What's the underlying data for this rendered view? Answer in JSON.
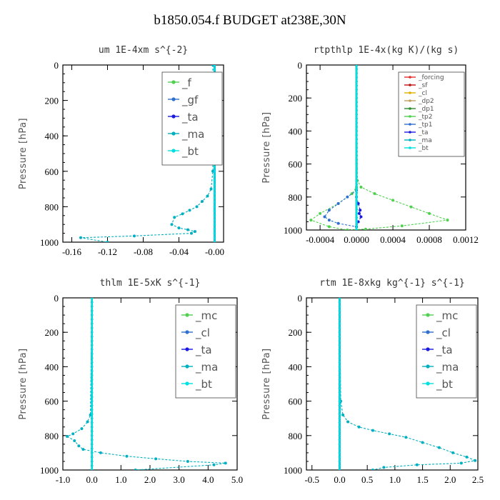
{
  "title": "b1850.054.f  BUDGET at238E,30N",
  "chart_data": [
    {
      "type": "line",
      "title": "um   1E-4xm s^{-2}",
      "ylabel": "Pressure [hPa]",
      "xlim": [
        -0.17,
        0.01
      ],
      "ylim": [
        1000,
        0
      ],
      "xticks": [
        -0.16,
        -0.12,
        -0.08,
        -0.04,
        -0.0
      ],
      "xticklabels": [
        "-0.16",
        "-0.12",
        "-0.08",
        "-0.04",
        "-0.00"
      ],
      "yticks": [
        0,
        200,
        400,
        600,
        800,
        1000
      ],
      "legend": {
        "position": "top-right",
        "size": "large"
      },
      "series": [
        {
          "name": "_f",
          "color": "#4fd14f",
          "x": [
            0,
            0
          ],
          "y": [
            0,
            1000
          ]
        },
        {
          "name": "_gf",
          "color": "#2f6fd0",
          "x": [
            0,
            0
          ],
          "y": [
            0,
            1000
          ]
        },
        {
          "name": "_ta",
          "color": "#1a1ae0",
          "x": [
            0,
            0
          ],
          "y": [
            0,
            1000
          ]
        },
        {
          "name": "_ma",
          "color": "#00b0c0",
          "x": [
            -0.002,
            -0.002,
            -0.004,
            -0.008,
            -0.014,
            -0.02,
            -0.028,
            -0.036,
            -0.045,
            -0.048,
            -0.04,
            -0.03,
            -0.022,
            -0.026,
            -0.09,
            -0.15,
            -0.12
          ],
          "y": [
            0,
            600,
            700,
            740,
            770,
            800,
            820,
            840,
            860,
            900,
            920,
            930,
            940,
            950,
            965,
            975,
            1000
          ]
        },
        {
          "name": "_bt",
          "color": "#00e0e0",
          "x": [
            0,
            0
          ],
          "y": [
            0,
            1000
          ]
        }
      ]
    },
    {
      "type": "line",
      "title": "rtpthlp   1E-4x(kg K)/(kg s)",
      "ylabel": "Pressure [hPa]",
      "xlim": [
        -0.00055,
        0.0012
      ],
      "ylim": [
        1000,
        0
      ],
      "xticks": [
        -0.0004,
        0.0,
        0.0004,
        0.0008,
        0.0012
      ],
      "xticklabels": [
        "-0.0004",
        "0.0000",
        "0.0004",
        "0.0008",
        "0.0012"
      ],
      "yticks": [
        0,
        200,
        400,
        600,
        800,
        1000
      ],
      "legend": {
        "position": "top-right",
        "size": "small"
      },
      "series": [
        {
          "name": "_forcing",
          "color": "#e03030",
          "x": [
            0,
            0
          ],
          "y": [
            0,
            1000
          ]
        },
        {
          "name": "_sf",
          "color": "#c01010",
          "x": [
            0,
            0
          ],
          "y": [
            0,
            1000
          ]
        },
        {
          "name": "_cl",
          "color": "#e0b000",
          "x": [
            0,
            0
          ],
          "y": [
            0,
            1000
          ]
        },
        {
          "name": "_dp2",
          "color": "#c0a060",
          "x": [
            0,
            0
          ],
          "y": [
            0,
            1000
          ]
        },
        {
          "name": "_dp1",
          "color": "#2a8f2a",
          "x": [
            0,
            0
          ],
          "y": [
            0,
            1000
          ]
        },
        {
          "name": "_tp2",
          "color": "#4fd14f",
          "x": [
            0,
            1e-05,
            5e-05,
            0.0002,
            0.0004,
            0.0006,
            0.0008,
            0.001,
            0.0005,
            0.0001,
            -0.0001,
            -0.0003,
            -0.0005,
            -0.0004,
            -0.0002,
            -5e-05,
            0
          ],
          "y": [
            0,
            700,
            740,
            780,
            820,
            860,
            900,
            940,
            975,
            995,
            1000,
            980,
            940,
            900,
            840,
            780,
            740
          ]
        },
        {
          "name": "_tp1",
          "color": "#2f6fd0",
          "x": [
            0,
            0,
            -0.0001,
            -0.0002,
            -0.0003,
            -0.00035,
            -0.0003,
            -0.0002,
            0
          ],
          "y": [
            0,
            760,
            800,
            840,
            880,
            920,
            940,
            960,
            980
          ]
        },
        {
          "name": "_ta",
          "color": "#1a1ae0",
          "x": [
            0,
            0,
            2e-05,
            4e-05,
            3e-05,
            5e-05,
            2e-05,
            0
          ],
          "y": [
            0,
            800,
            840,
            880,
            900,
            920,
            950,
            980
          ]
        },
        {
          "name": "_ma",
          "color": "#00b0c0",
          "x": [
            0,
            0
          ],
          "y": [
            0,
            1000
          ]
        },
        {
          "name": "_bt",
          "color": "#00e0e0",
          "x": [
            0,
            0
          ],
          "y": [
            0,
            1000
          ]
        }
      ]
    },
    {
      "type": "line",
      "title": "thlm   1E-5xK s^{-1}",
      "ylabel": "Pressure [hPa]",
      "xlim": [
        -1.0,
        5.0
      ],
      "ylim": [
        1000,
        0
      ],
      "xticks": [
        -1.0,
        0.0,
        1.0,
        2.0,
        3.0,
        4.0,
        5.0
      ],
      "xticklabels": [
        "-1.0",
        "0.0",
        "1.0",
        "2.0",
        "3.0",
        "4.0",
        "5.0"
      ],
      "yticks": [
        0,
        200,
        400,
        600,
        800,
        1000
      ],
      "legend": {
        "position": "top-right",
        "size": "large"
      },
      "series": [
        {
          "name": "_mc",
          "color": "#4fd14f",
          "x": [
            0,
            0
          ],
          "y": [
            0,
            1000
          ]
        },
        {
          "name": "_cl",
          "color": "#2f6fd0",
          "x": [
            0,
            0
          ],
          "y": [
            0,
            1000
          ]
        },
        {
          "name": "_ta",
          "color": "#1a1ae0",
          "x": [
            0,
            0
          ],
          "y": [
            0,
            1000
          ]
        },
        {
          "name": "_ma",
          "color": "#00b0c0",
          "x": [
            0,
            -0.05,
            -0.15,
            -0.35,
            -0.65,
            -0.85,
            -0.6,
            -0.45,
            -0.3,
            0.3,
            1.2,
            2.2,
            3.3,
            4.6,
            4.2,
            1.5
          ],
          "y": [
            0,
            680,
            720,
            760,
            790,
            805,
            830,
            860,
            880,
            900,
            920,
            935,
            950,
            960,
            970,
            1000
          ]
        },
        {
          "name": "_bt",
          "color": "#00e0e0",
          "x": [
            0,
            0
          ],
          "y": [
            0,
            1000
          ]
        }
      ]
    },
    {
      "type": "line",
      "title": "rtm   1E-8xkg kg^{-1} s^{-1}",
      "ylabel": "Pressure [hPa]",
      "xlim": [
        -0.6,
        2.5
      ],
      "ylim": [
        1000,
        0
      ],
      "xticks": [
        -0.5,
        0.0,
        0.5,
        1.0,
        1.5,
        2.0,
        2.5
      ],
      "xticklabels": [
        "-0.5",
        "0.0",
        "0.5",
        "1.0",
        "1.5",
        "2.0",
        "2.5"
      ],
      "yticks": [
        0,
        200,
        400,
        600,
        800,
        1000
      ],
      "legend": {
        "position": "top-right",
        "size": "large"
      },
      "series": [
        {
          "name": "_mc",
          "color": "#4fd14f",
          "x": [
            0,
            0
          ],
          "y": [
            0,
            1000
          ]
        },
        {
          "name": "_cl",
          "color": "#2f6fd0",
          "x": [
            0,
            0
          ],
          "y": [
            0,
            1000
          ]
        },
        {
          "name": "_ta",
          "color": "#1a1ae0",
          "x": [
            0,
            0
          ],
          "y": [
            0,
            1000
          ]
        },
        {
          "name": "_ma",
          "color": "#00b0c0",
          "x": [
            0,
            0.02,
            0.06,
            0.15,
            0.35,
            0.6,
            0.9,
            1.2,
            1.5,
            1.8,
            2.05,
            2.3,
            2.45,
            2.2,
            1.4,
            0.8,
            0.6
          ],
          "y": [
            0,
            600,
            680,
            720,
            750,
            770,
            790,
            810,
            840,
            870,
            900,
            925,
            945,
            960,
            970,
            985,
            1000
          ]
        },
        {
          "name": "_bt",
          "color": "#00e0e0",
          "x": [
            0,
            0
          ],
          "y": [
            0,
            1000
          ]
        }
      ]
    }
  ]
}
